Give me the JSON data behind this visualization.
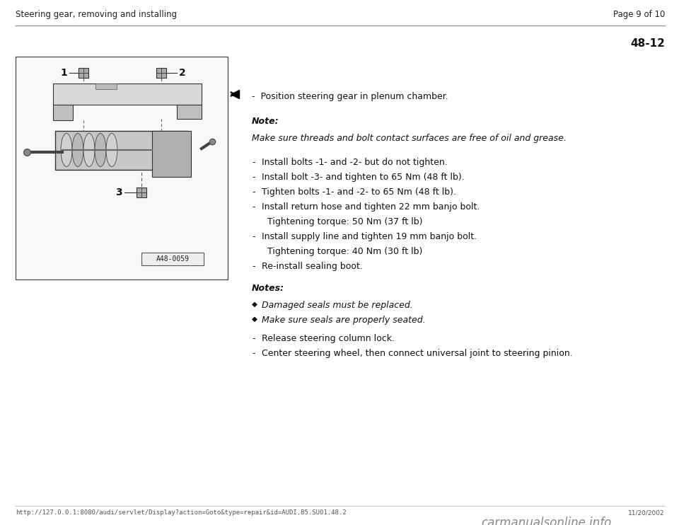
{
  "page_header_left": "Steering gear, removing and installing",
  "page_header_right": "Page 9 of 10",
  "section_number": "48-12",
  "background_color": "#ffffff",
  "header_line_color": "#999999",
  "text_color": "#000000",
  "first_bullet": "-  Position steering gear in plenum chamber.",
  "note_label": "Note:",
  "note_text": "Make sure threads and bolt contact surfaces are free of oil and grease.",
  "bullets": [
    [
      "-",
      "Install bolts -1- and -2- but do not tighten."
    ],
    [
      "-",
      "Install bolt -3- and tighten to 65 Nm (48 ft lb)."
    ],
    [
      "-",
      "Tighten bolts -1- and -2- to 65 Nm (48 ft lb)."
    ],
    [
      "-",
      "Install return hose and tighten 22 mm banjo bolt."
    ],
    [
      "",
      "Tightening torque: 50 Nm (37 ft lb)"
    ],
    [
      "-",
      "Install supply line and tighten 19 mm banjo bolt."
    ],
    [
      "",
      "Tightening torque: 40 Nm (30 ft lb)"
    ],
    [
      "-",
      "Re-install sealing boot."
    ]
  ],
  "notes_label": "Notes:",
  "diamond_notes": [
    "Damaged seals must be replaced.",
    "Make sure seals are properly seated."
  ],
  "final_bullets": [
    "-  Release steering column lock.",
    "-  Center steering wheel, then connect universal joint to steering pinion."
  ],
  "footer_left": "http://127.0.0.1:8080/audi/servlet/Display?action=Goto&type=repair&id=AUDI.B5.SU01.48.2",
  "footer_right": "11/20/2002",
  "image_label": "A48-0059",
  "footer_logo": "carmanualsonline.info"
}
